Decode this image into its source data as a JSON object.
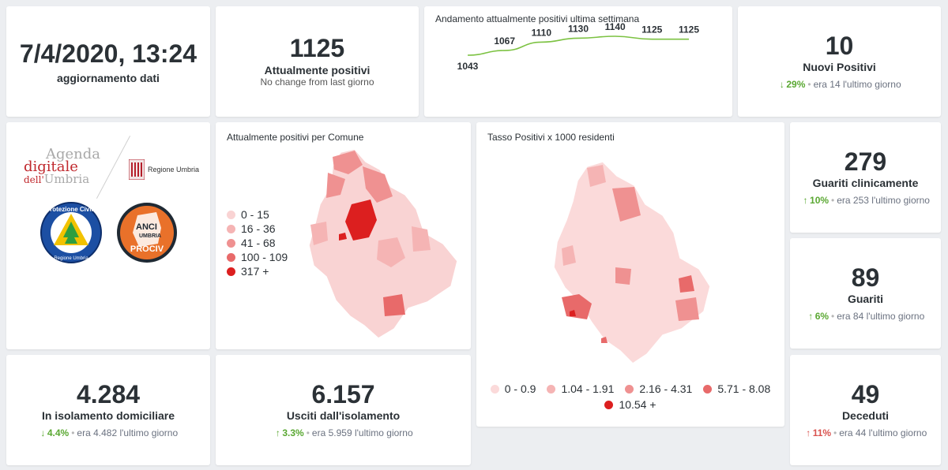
{
  "update": {
    "datetime": "7/4/2020, 13:24",
    "label": "aggiornamento dati"
  },
  "positives": {
    "value": "1125",
    "label": "Attualmente positivi",
    "note": "No change from last giorno"
  },
  "trend": {
    "title": "Andamento attualmente positivi ultima settimana",
    "chart_data": {
      "type": "line",
      "title": "Andamento attualmente positivi ultima settimana",
      "x": [
        1,
        2,
        3,
        4,
        5,
        6,
        7
      ],
      "values": [
        1043,
        1067,
        1110,
        1130,
        1140,
        1125,
        1125
      ],
      "labels": [
        "1043",
        "1067",
        "1110",
        "1130",
        "1140",
        "1125",
        "1125"
      ],
      "ylim": [
        1043,
        1140
      ],
      "color": "#7cc242"
    }
  },
  "new_positives": {
    "value": "10",
    "label": "Nuovi Positivi",
    "arrow": "↓",
    "pct": "29%",
    "was": "era 14",
    "period": "l'ultimo giorno"
  },
  "logos": {
    "agenda_line1": "Agenda",
    "agenda_line2": "digitale",
    "agenda_line3_pre": "dell'",
    "agenda_line3_post": "Umbria",
    "regione": "Regione Umbria",
    "protezione_text": "Protezione Civile",
    "protezione_sub": "Regione Umbria",
    "anci_top": "ANCI",
    "anci_mid": "UMBRIA",
    "anci_bottom": "PROCIV",
    "colors": {
      "agenda_red": "#c0282d",
      "protezione_blue": "#1c4fa3",
      "anci_orange": "#e9712a"
    }
  },
  "map1": {
    "title": "Attualmente positivi per Comune",
    "legend": [
      {
        "label": "0 - 15",
        "color": "#f9d3d3"
      },
      {
        "label": "16 - 36",
        "color": "#f5b4b4"
      },
      {
        "label": "41 - 68",
        "color": "#ef9191"
      },
      {
        "label": "100 - 109",
        "color": "#e86a6a"
      },
      {
        "label": "317 +",
        "color": "#dc1f1f"
      }
    ]
  },
  "map2": {
    "title": "Tasso Positivi x 1000 residenti",
    "legend": [
      {
        "label": "0 - 0.9",
        "color": "#fbdada"
      },
      {
        "label": "1.04 - 1.91",
        "color": "#f5b4b4"
      },
      {
        "label": "2.16 - 4.31",
        "color": "#ef9191"
      },
      {
        "label": "5.71 - 8.08",
        "color": "#e86a6a"
      },
      {
        "label": "10.54 +",
        "color": "#dc1f1f"
      }
    ]
  },
  "guariti_clin": {
    "value": "279",
    "label": "Guariti clinicamente",
    "arrow": "↑",
    "pct": "10%",
    "was": "era 253",
    "period": "l'ultimo giorno"
  },
  "guariti": {
    "value": "89",
    "label": "Guariti",
    "arrow": "↑",
    "pct": "6%",
    "was": "era 84",
    "period": "l'ultimo giorno"
  },
  "deceduti": {
    "value": "49",
    "label": "Deceduti",
    "arrow": "↑",
    "pct": "11%",
    "was": "era 44",
    "period": "l'ultimo giorno"
  },
  "isolamento": {
    "value": "4.284",
    "label": "In isolamento domiciliare",
    "arrow": "↓",
    "pct": "4.4%",
    "was": "era 4.482",
    "period": "l'ultimo giorno"
  },
  "usciti": {
    "value": "6.157",
    "label": "Usciti dall'isolamento",
    "arrow": "↑",
    "pct": "3.3%",
    "was": "era 5.959",
    "period": "l'ultimo giorno"
  }
}
